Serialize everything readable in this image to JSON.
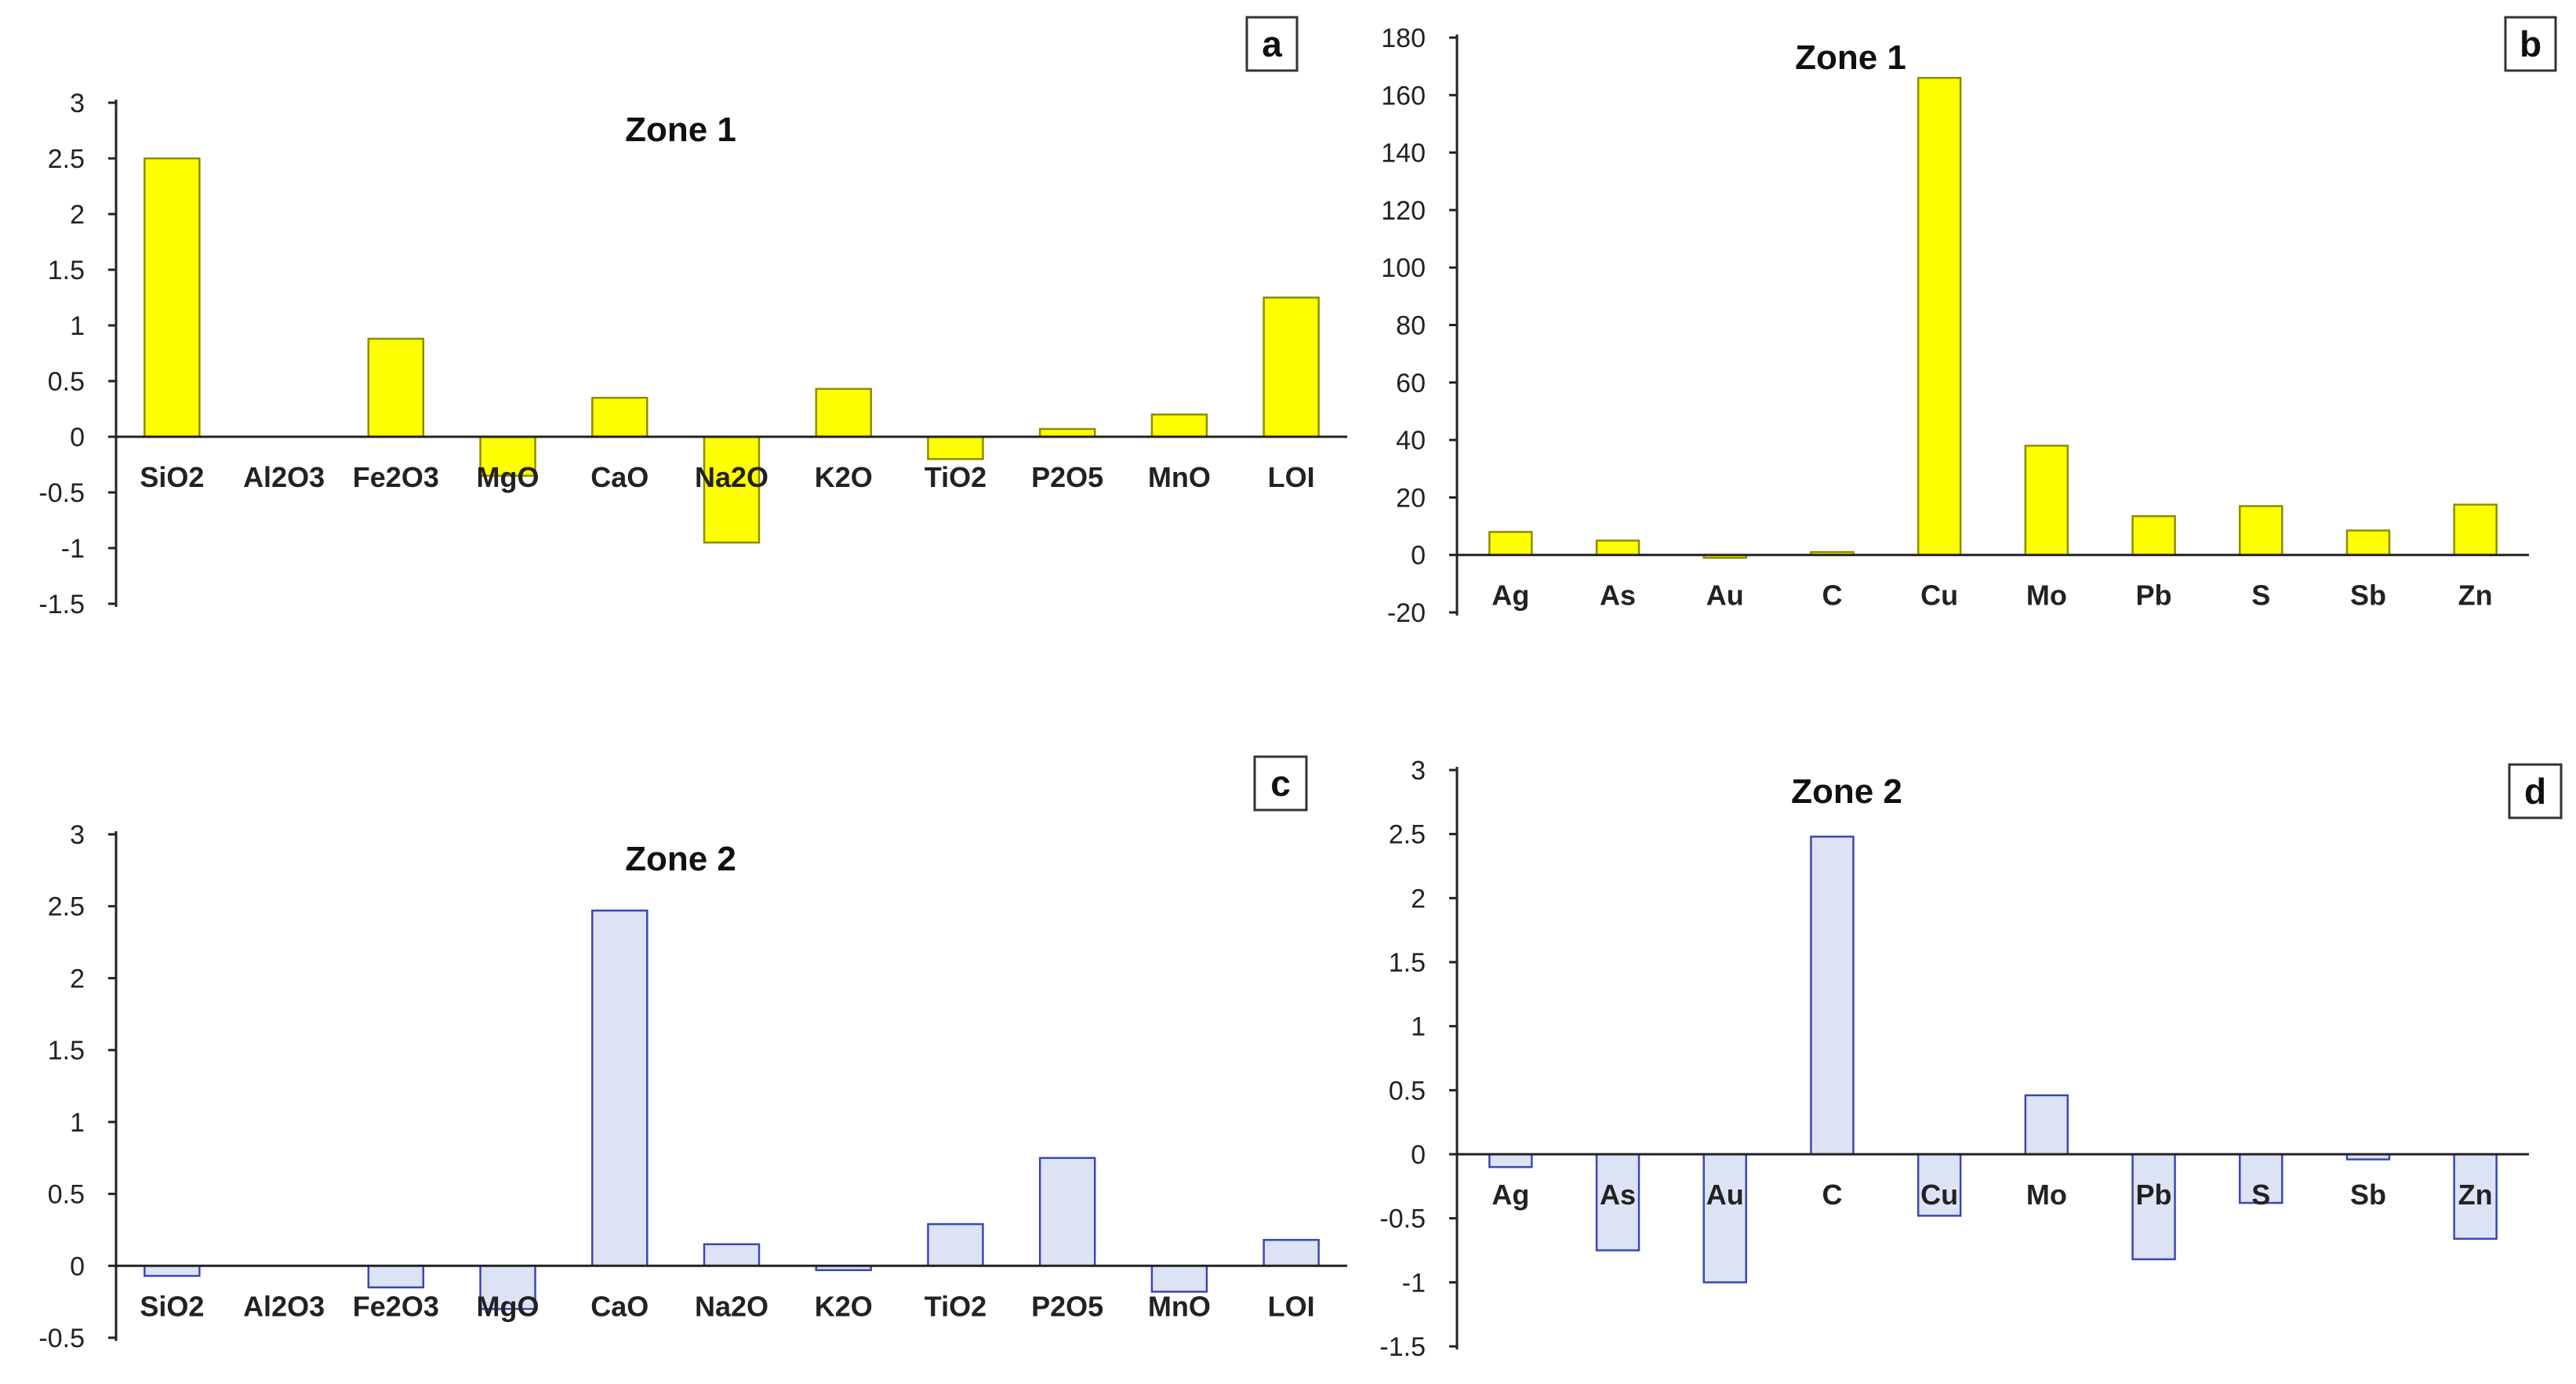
{
  "chart_data": [
    {
      "panel": "a",
      "type": "bar",
      "title": "Zone 1",
      "categories": [
        "SiO2",
        "Al2O3",
        "Fe2O3",
        "MgO",
        "CaO",
        "Na2O",
        "K2O",
        "TiO2",
        "P2O5",
        "MnO",
        "LOI"
      ],
      "values": [
        2.5,
        0,
        0.88,
        -0.35,
        0.35,
        -0.95,
        0.43,
        -0.2,
        0.07,
        0.2,
        1.25
      ],
      "ylim": [
        -1.5,
        3
      ],
      "yticks": [
        3,
        2.5,
        2,
        1.5,
        1,
        0.5,
        0,
        -0.5,
        -1,
        -1.5
      ],
      "xlabel": "",
      "ylabel": "",
      "bar_fill": "#ffff00",
      "bar_stroke": "#8c8c00",
      "grid": false,
      "legend": "none"
    },
    {
      "panel": "b",
      "type": "bar",
      "title": "Zone 1",
      "categories": [
        "Ag",
        "As",
        "Au",
        "C",
        "Cu",
        "Mo",
        "Pb",
        "S",
        "Sb",
        "Zn"
      ],
      "values": [
        8,
        5,
        -1,
        1,
        166,
        38,
        13.5,
        17,
        8.5,
        17.5
      ],
      "ylim": [
        -20,
        180
      ],
      "yticks": [
        180,
        160,
        140,
        120,
        100,
        80,
        60,
        40,
        20,
        0,
        -20
      ],
      "xlabel": "",
      "ylabel": "",
      "bar_fill": "#ffff00",
      "bar_stroke": "#8c8c00",
      "grid": false,
      "legend": "none"
    },
    {
      "panel": "c",
      "type": "bar",
      "title": "Zone 2",
      "categories": [
        "SiO2",
        "Al2O3",
        "Fe2O3",
        "MgO",
        "CaO",
        "Na2O",
        "K2O",
        "TiO2",
        "P2O5",
        "MnO",
        "LOI"
      ],
      "values": [
        -0.07,
        0,
        -0.15,
        -0.3,
        2.47,
        0.15,
        -0.03,
        0.29,
        0.75,
        -0.18,
        0.18
      ],
      "ylim": [
        -0.5,
        3
      ],
      "yticks": [
        3,
        2.5,
        2,
        1.5,
        1,
        0.5,
        0,
        -0.5
      ],
      "xlabel": "",
      "ylabel": "",
      "bar_fill": "#dce3f5",
      "bar_stroke": "#3a46b8",
      "grid": false,
      "legend": "none"
    },
    {
      "panel": "d",
      "type": "bar",
      "title": "Zone 2",
      "categories": [
        "Ag",
        "As",
        "Au",
        "C",
        "Cu",
        "Mo",
        "Pb",
        "S",
        "Sb",
        "Zn"
      ],
      "values": [
        -0.1,
        -0.75,
        -1.0,
        2.48,
        -0.48,
        0.46,
        -0.82,
        -0.38,
        -0.04,
        -0.66
      ],
      "ylim": [
        -1.5,
        3
      ],
      "yticks": [
        3,
        2.5,
        2,
        1.5,
        1,
        0.5,
        0,
        -0.5,
        -1,
        -1.5
      ],
      "xlabel": "",
      "ylabel": "",
      "bar_fill": "#dce3f5",
      "bar_stroke": "#3a46b8",
      "grid": false,
      "legend": "none"
    }
  ]
}
